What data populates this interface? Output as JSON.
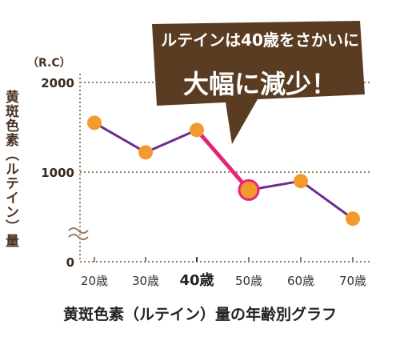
{
  "callout": {
    "line1": "ルテインは40歳をさかいに",
    "line2": "大幅に減少！"
  },
  "axis": {
    "unit": "（R.C）",
    "ylabel": "黄斑色素（ルテイン）量"
  },
  "caption": "黄斑色素（ルテイン）量の年齢別グラフ",
  "colors": {
    "line": "#6b2d8f",
    "highlight_line": "#e4267a",
    "marker": "#f29a2e",
    "callout_bg": "#5a3c22",
    "grid": "#9b7b62",
    "emphasis_tick": "#4a3425"
  },
  "chart_data": {
    "type": "line",
    "title": "",
    "xlabel": "",
    "ylabel": "黄斑色素（ルテイン）量",
    "ylim": [
      0,
      2000
    ],
    "yticks": [
      0,
      1000,
      2000
    ],
    "yticklabels": [
      "0",
      "1000",
      "2000"
    ],
    "axis_break": true,
    "grid": "horizontal dotted",
    "categories": [
      "20歳",
      "30歳",
      "40歳",
      "50歳",
      "60歳",
      "70歳"
    ],
    "emphasized_category": "40歳",
    "series": [
      {
        "values": [
          1550,
          1220,
          1470,
          800,
          900,
          480
        ]
      }
    ],
    "highlighted_segment": [
      "40歳",
      "50歳"
    ],
    "highlighted_point": "50歳"
  }
}
